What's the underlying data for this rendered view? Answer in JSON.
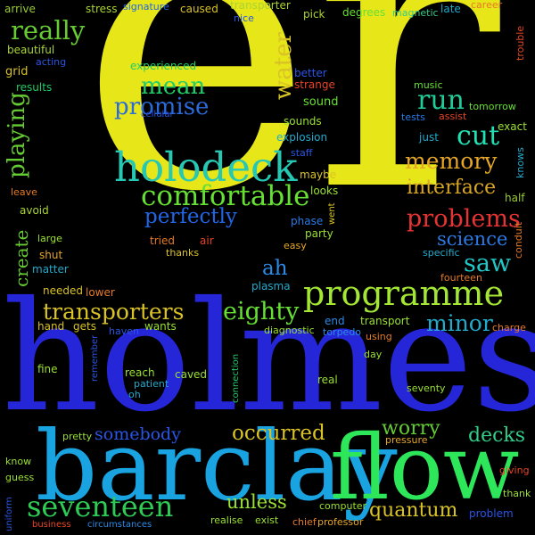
{
  "cloud": {
    "background": "#000000",
    "words": [
      {
        "text": "er",
        "color": "#e6e619"
      },
      {
        "text": "holmes",
        "color": "#2626d9"
      },
      {
        "text": "barclay",
        "color": "#19a3e0"
      },
      {
        "text": "flow",
        "color": "#2ee65a"
      },
      {
        "text": "programme",
        "color": "#a3e633"
      },
      {
        "text": "holodeck",
        "color": "#26c7b3"
      },
      {
        "text": "comfortable",
        "color": "#66e033"
      },
      {
        "text": "seventeen",
        "color": "#2ecc55"
      },
      {
        "text": "transporters",
        "color": "#d9c226"
      },
      {
        "text": "problems",
        "color": "#e63333"
      },
      {
        "text": "memory",
        "color": "#e6a626"
      },
      {
        "text": "really",
        "color": "#66cc33"
      },
      {
        "text": "mean",
        "color": "#22cc66"
      },
      {
        "text": "promise",
        "color": "#2a6ad9"
      },
      {
        "text": "water",
        "color": "#d9c226"
      },
      {
        "text": "run",
        "color": "#22cc99"
      },
      {
        "text": "cut",
        "color": "#22e0b3"
      },
      {
        "text": "interface",
        "color": "#d9a626"
      },
      {
        "text": "perfectly",
        "color": "#2266e6"
      },
      {
        "text": "playing",
        "color": "#66cc33"
      },
      {
        "text": "science",
        "color": "#2a7ae6"
      },
      {
        "text": "saw",
        "color": "#22c7c7"
      },
      {
        "text": "eighty",
        "color": "#66e033"
      },
      {
        "text": "minor",
        "color": "#22aacc"
      },
      {
        "text": "occurred",
        "color": "#d9c226"
      },
      {
        "text": "worry",
        "color": "#66cc33"
      },
      {
        "text": "decks",
        "color": "#33cc88"
      },
      {
        "text": "somebody",
        "color": "#2a55e6"
      },
      {
        "text": "quantum",
        "color": "#d9c226"
      },
      {
        "text": "unless",
        "color": "#99e033"
      },
      {
        "text": "create",
        "color": "#66cc33"
      },
      {
        "text": "ah",
        "color": "#2a8ae6"
      },
      {
        "text": "arrive",
        "color": "#99cc33"
      },
      {
        "text": "stress",
        "color": "#aad433"
      },
      {
        "text": "signature",
        "color": "#2266e6"
      },
      {
        "text": "caused",
        "color": "#d9c226"
      },
      {
        "text": "transporter",
        "color": "#aad433"
      },
      {
        "text": "nice",
        "color": "#2a55e6"
      },
      {
        "text": "pick",
        "color": "#aad433"
      },
      {
        "text": "degrees",
        "color": "#66e033"
      },
      {
        "text": "magnetic",
        "color": "#33cc88"
      },
      {
        "text": "late",
        "color": "#22aacc"
      },
      {
        "text": "career",
        "color": "#e67a26"
      },
      {
        "text": "trouble",
        "color": "#e64426"
      },
      {
        "text": "beautiful",
        "color": "#aad433"
      },
      {
        "text": "grid",
        "color": "#d9c226"
      },
      {
        "text": "acting",
        "color": "#2a55e6"
      },
      {
        "text": "results",
        "color": "#22cc66"
      },
      {
        "text": "experienced",
        "color": "#22cc66"
      },
      {
        "text": "better",
        "color": "#2a55e6"
      },
      {
        "text": "strange",
        "color": "#e64426"
      },
      {
        "text": "sound",
        "color": "#66e033"
      },
      {
        "text": "music",
        "color": "#66e033"
      },
      {
        "text": "assist",
        "color": "#e64426"
      },
      {
        "text": "tests",
        "color": "#2a7ae6"
      },
      {
        "text": "tomorrow",
        "color": "#66e033"
      },
      {
        "text": "cellular",
        "color": "#2a55e6"
      },
      {
        "text": "sounds",
        "color": "#99e033"
      },
      {
        "text": "exact",
        "color": "#99e033"
      },
      {
        "text": "explosion",
        "color": "#22aacc"
      },
      {
        "text": "just",
        "color": "#22aacc"
      },
      {
        "text": "staff",
        "color": "#2a55e6"
      },
      {
        "text": "knows",
        "color": "#22aacc"
      },
      {
        "text": "maybe",
        "color": "#d9c226"
      },
      {
        "text": "looks",
        "color": "#99e033"
      },
      {
        "text": "half",
        "color": "#99cc33"
      },
      {
        "text": "leave",
        "color": "#e67a26"
      },
      {
        "text": "avoid",
        "color": "#aad433"
      },
      {
        "text": "phase",
        "color": "#2a7ae6"
      },
      {
        "text": "went",
        "color": "#d9c226"
      },
      {
        "text": "party",
        "color": "#99e033"
      },
      {
        "text": "conduit",
        "color": "#e67a26"
      },
      {
        "text": "large",
        "color": "#99e033"
      },
      {
        "text": "tried",
        "color": "#e67a26"
      },
      {
        "text": "air",
        "color": "#e64426"
      },
      {
        "text": "easy",
        "color": "#e6a626"
      },
      {
        "text": "specific",
        "color": "#22aacc"
      },
      {
        "text": "shut",
        "color": "#e6a626"
      },
      {
        "text": "thanks",
        "color": "#d9c226"
      },
      {
        "text": "matter",
        "color": "#22aacc"
      },
      {
        "text": "fourteen",
        "color": "#e67a26"
      },
      {
        "text": "needed",
        "color": "#d9c226"
      },
      {
        "text": "lower",
        "color": "#e67a26"
      },
      {
        "text": "plasma",
        "color": "#22aacc"
      },
      {
        "text": "hand",
        "color": "#d9c226"
      },
      {
        "text": "gets",
        "color": "#d9c226"
      },
      {
        "text": "end",
        "color": "#2a8ae6"
      },
      {
        "text": "transport",
        "color": "#99e033"
      },
      {
        "text": "charge",
        "color": "#e67a26"
      },
      {
        "text": "haven",
        "color": "#2a55e6"
      },
      {
        "text": "wants",
        "color": "#99e033"
      },
      {
        "text": "diagnostic",
        "color": "#99e033"
      },
      {
        "text": "torpedo",
        "color": "#2a8ae6"
      },
      {
        "text": "using",
        "color": "#e67a26"
      },
      {
        "text": "day",
        "color": "#99e033"
      },
      {
        "text": "fine",
        "color": "#99e033"
      },
      {
        "text": "remember",
        "color": "#2a55e6"
      },
      {
        "text": "reach",
        "color": "#99e033"
      },
      {
        "text": "patient",
        "color": "#22aacc"
      },
      {
        "text": "oh",
        "color": "#22aacc"
      },
      {
        "text": "caved",
        "color": "#99e033"
      },
      {
        "text": "connection",
        "color": "#22cc66"
      },
      {
        "text": "real",
        "color": "#99e033"
      },
      {
        "text": "seventy",
        "color": "#99e033"
      },
      {
        "text": "pretty",
        "color": "#99e033"
      },
      {
        "text": "pressure",
        "color": "#e6a626"
      },
      {
        "text": "know",
        "color": "#99e033"
      },
      {
        "text": "giving",
        "color": "#e64426"
      },
      {
        "text": "guess",
        "color": "#99e033"
      },
      {
        "text": "thank",
        "color": "#99e033"
      },
      {
        "text": "uniform",
        "color": "#2a55e6"
      },
      {
        "text": "realise",
        "color": "#99e033"
      },
      {
        "text": "exist",
        "color": "#99e033"
      },
      {
        "text": "chief",
        "color": "#e67a26"
      },
      {
        "text": "computer",
        "color": "#99e033"
      },
      {
        "text": "professor",
        "color": "#e6a626"
      },
      {
        "text": "problem",
        "color": "#2a55e6"
      },
      {
        "text": "business",
        "color": "#e64426"
      },
      {
        "text": "circumstances",
        "color": "#2a8ae6"
      }
    ]
  }
}
